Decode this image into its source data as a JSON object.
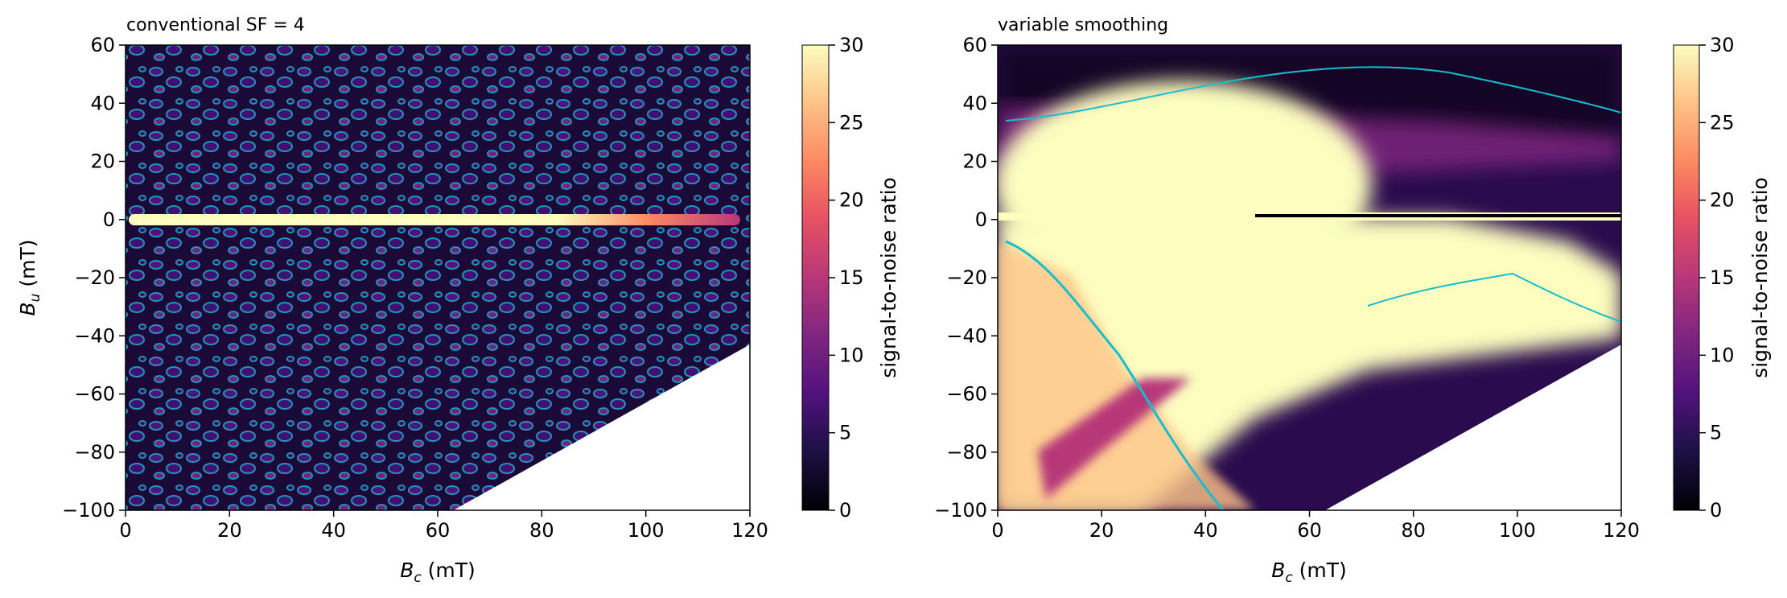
{
  "figure": {
    "colormap": "magma",
    "contour_color": "#17becf"
  },
  "chart_data": [
    {
      "type": "heatmap",
      "title": "conventional SF = 4",
      "xlabel": "B_c (mT)",
      "xlabel_main": "B",
      "xlabel_sub": "c",
      "xlabel_unit": " (mT)",
      "ylabel": "B_u (mT)",
      "ylabel_main": "B",
      "ylabel_sub": "u",
      "ylabel_unit": " (mT)",
      "xlim": [
        0,
        120
      ],
      "ylim": [
        -100,
        60
      ],
      "xticks": [
        0,
        20,
        40,
        60,
        80,
        100,
        120
      ],
      "yticks": [
        60,
        40,
        20,
        0,
        -20,
        -40,
        -60,
        -80,
        -100
      ],
      "masked_region_boundary": [
        [
          63,
          -100
        ],
        [
          120,
          -43
        ]
      ],
      "bright_band": {
        "y": 0,
        "x_range": [
          0,
          118
        ]
      },
      "colorbar": {
        "label": "signal-to-noise ratio",
        "range": [
          0,
          30
        ],
        "ticks": [
          0,
          5,
          10,
          15,
          20,
          25,
          30
        ]
      }
    },
    {
      "type": "heatmap",
      "title": "variable smoothing",
      "xlabel": "B_c (mT)",
      "xlabel_main": "B",
      "xlabel_sub": "c",
      "xlabel_unit": " (mT)",
      "ylabel": "",
      "xlim": [
        0,
        120
      ],
      "ylim": [
        -100,
        60
      ],
      "xticks": [
        0,
        20,
        40,
        60,
        80,
        100,
        120
      ],
      "yticks": [
        60,
        40,
        20,
        0,
        -20,
        -40,
        -60,
        -80,
        -100
      ],
      "masked_region_boundary": [
        [
          63,
          -100
        ],
        [
          120,
          -43
        ]
      ],
      "bright_band": {
        "y": 0,
        "x_range": [
          0,
          120
        ]
      },
      "colorbar": {
        "label": "signal-to-noise ratio",
        "range": [
          0,
          30
        ],
        "ticks": [
          0,
          5,
          10,
          15,
          20,
          25,
          30
        ]
      }
    }
  ]
}
